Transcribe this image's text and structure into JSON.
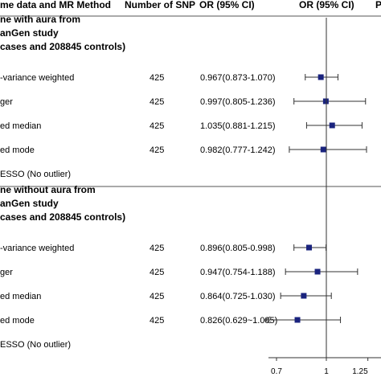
{
  "headers": {
    "method": "me data and MR Method",
    "nsnp": "Number of SNP",
    "or_ci": "OR (95% CI)",
    "or_ci_plot": "OR (95% CI)",
    "pval": "P"
  },
  "colors": {
    "marker": "#1a237e",
    "line": "#333333"
  },
  "chart_data": {
    "type": "forest",
    "x_ref": 1,
    "x_ticks": [
      0.7,
      1,
      1.25
    ],
    "x_tick_labels": [
      "0.7",
      "1",
      "1.25"
    ],
    "groups": [
      {
        "title_lines": [
          "ne with aura from",
          "anGen study",
          "cases and 208845 controls)"
        ],
        "rows": [
          {
            "method": "-variance weighted",
            "nsnp": "425",
            "or_text": "0.967(0.873-1.070)",
            "or": 0.967,
            "lo": 0.873,
            "hi": 1.07
          },
          {
            "method": "ger",
            "nsnp": "425",
            "or_text": "0.997(0.805-1.236)",
            "or": 0.997,
            "lo": 0.805,
            "hi": 1.236
          },
          {
            "method": "ed median",
            "nsnp": "425",
            "or_text": "1.035(0.881-1.215)",
            "or": 1.035,
            "lo": 0.881,
            "hi": 1.215
          },
          {
            "method": "ed mode",
            "nsnp": "425",
            "or_text": "0.982(0.777-1.242)",
            "or": 0.982,
            "lo": 0.777,
            "hi": 1.242
          },
          {
            "method": "ESSO (No outlier)",
            "nsnp": "",
            "or_text": "",
            "or": null,
            "lo": null,
            "hi": null
          }
        ]
      },
      {
        "title_lines": [
          "ne without aura from",
          "anGen study",
          "cases and 208845 controls)"
        ],
        "rows": [
          {
            "method": "-variance weighted",
            "nsnp": "425",
            "or_text": "0.896(0.805-0.998)",
            "or": 0.896,
            "lo": 0.805,
            "hi": 0.998
          },
          {
            "method": "ger",
            "nsnp": "425",
            "or_text": "0.947(0.754-1.188)",
            "or": 0.947,
            "lo": 0.754,
            "hi": 1.188
          },
          {
            "method": "ed median",
            "nsnp": "425",
            "or_text": "0.864(0.725-1.030)",
            "or": 0.864,
            "lo": 0.725,
            "hi": 1.03
          },
          {
            "method": "ed mode",
            "nsnp": "425",
            "or_text": "0.826(0.629~1.085)",
            "or": 0.826,
            "lo": 0.629,
            "hi": 1.085,
            "lo_arrow": true
          },
          {
            "method": "ESSO (No outlier)",
            "nsnp": "",
            "or_text": "",
            "or": null,
            "lo": null,
            "hi": null
          }
        ]
      }
    ]
  }
}
